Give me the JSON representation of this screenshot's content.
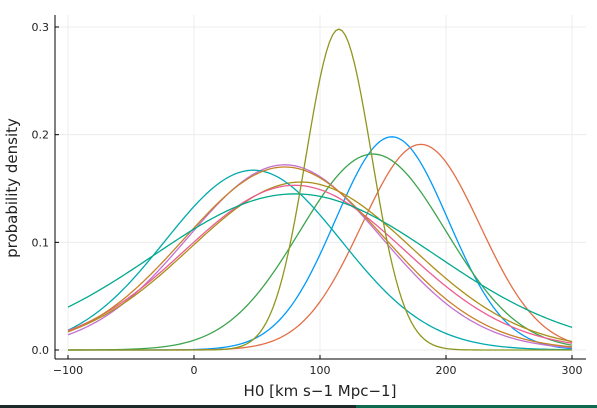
{
  "chart_data": {
    "type": "line",
    "xlabel": "H0 [km s−1 Mpc−1]",
    "ylabel": "probability density",
    "xlim": [
      -100,
      300
    ],
    "ylim": [
      0,
      0.3
    ],
    "x_ticks": [
      -100,
      0,
      100,
      200,
      300
    ],
    "y_ticks": [
      0.0,
      0.1,
      0.2,
      0.3
    ],
    "x_tick_labels": [
      "−100",
      "0",
      "100",
      "200",
      "300"
    ],
    "y_tick_labels": [
      "0.0",
      "0.1",
      "0.2",
      "0.3"
    ],
    "grid": true,
    "legend": "none",
    "series": [
      {
        "color": "#009AFA",
        "mean": 157,
        "sigma": 45,
        "peak": 0.198
      },
      {
        "color": "#E36F47",
        "mean": 180,
        "sigma": 47,
        "peak": 0.191
      },
      {
        "color": "#3EA44E",
        "mean": 142,
        "sigma": 58,
        "peak": 0.182
      },
      {
        "color": "#C371D2",
        "mean": 72,
        "sigma": 77,
        "peak": 0.172
      },
      {
        "color": "#AC8E18",
        "mean": 85,
        "sigma": 88,
        "peak": 0.156
      },
      {
        "color": "#00A9AD",
        "mean": 47,
        "sigma": 70,
        "peak": 0.167
      },
      {
        "color": "#ED5D92",
        "mean": 80,
        "sigma": 87,
        "peak": 0.153
      },
      {
        "color": "#C68225",
        "mean": 72,
        "sigma": 80,
        "peak": 0.17
      },
      {
        "color": "#00A98D",
        "mean": 80,
        "sigma": 112,
        "peak": 0.145
      },
      {
        "color": "#8E971D",
        "mean": 115,
        "sigma": 26,
        "peak": 0.298
      }
    ]
  }
}
